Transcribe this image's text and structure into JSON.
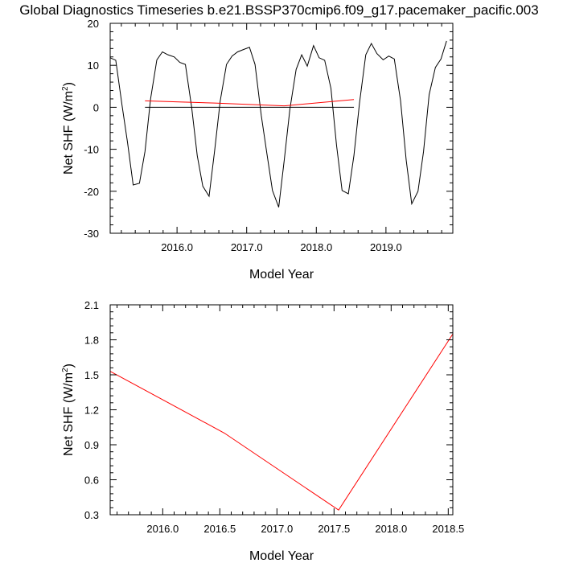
{
  "figure": {
    "title": "Global Diagnostics Timeseries b.e21.BSSP370cmip6.f09_g17.pacemaker_pacific.003"
  },
  "chart_data": [
    {
      "type": "line",
      "xlabel": "Model Year",
      "ylabel": "Net SHF (W/m",
      "ylabel_sup": "2",
      "ylabel_close": ")",
      "xlim": [
        2015.04,
        2019.96
      ],
      "ylim": [
        -30,
        20
      ],
      "x_ticks": [
        {
          "value": 2016.0,
          "label": "2016.0"
        },
        {
          "value": 2017.0,
          "label": "2017.0"
        },
        {
          "value": 2018.0,
          "label": "2018.0"
        },
        {
          "value": 2019.0,
          "label": "2019.0"
        }
      ],
      "x_minor": [
        2015.2,
        2015.4,
        2015.6,
        2015.8,
        2016.2,
        2016.4,
        2016.6,
        2016.8,
        2017.2,
        2017.4,
        2017.6,
        2017.8,
        2018.2,
        2018.4,
        2018.6,
        2018.8,
        2019.2,
        2019.4,
        2019.6,
        2019.8
      ],
      "y_ticks": [
        {
          "value": 20,
          "label": "20"
        },
        {
          "value": 10,
          "label": "10"
        },
        {
          "value": 0,
          "label": "0"
        },
        {
          "value": -10,
          "label": "-10"
        },
        {
          "value": -20,
          "label": "-20"
        },
        {
          "value": -30,
          "label": "-30"
        }
      ],
      "y_minor": [
        18,
        16,
        14,
        12,
        8,
        6,
        4,
        2,
        -2,
        -4,
        -6,
        -8,
        -12,
        -14,
        -16,
        -18,
        -22,
        -24,
        -26,
        -28
      ],
      "reference_line": {
        "y": 0,
        "x": [
          2015.54,
          2018.54
        ],
        "color": "#000000"
      },
      "series": [
        {
          "color": "#000000",
          "points": [
            [
              2015.04,
              11.8
            ],
            [
              2015.12,
              11.2
            ],
            [
              2015.21,
              0.5
            ],
            [
              2015.29,
              -8.5
            ],
            [
              2015.37,
              -18.5
            ],
            [
              2015.46,
              -18.1
            ],
            [
              2015.54,
              -10.5
            ],
            [
              2015.62,
              2.0
            ],
            [
              2015.71,
              11.3
            ],
            [
              2015.79,
              13.2
            ],
            [
              2015.87,
              12.5
            ],
            [
              2015.96,
              12.0
            ],
            [
              2016.04,
              10.7
            ],
            [
              2016.12,
              10.2
            ],
            [
              2016.21,
              0.0
            ],
            [
              2016.29,
              -11.5
            ],
            [
              2016.37,
              -18.8
            ],
            [
              2016.46,
              -21.2
            ],
            [
              2016.54,
              -10.3
            ],
            [
              2016.62,
              1.5
            ],
            [
              2016.71,
              10.2
            ],
            [
              2016.79,
              12.2
            ],
            [
              2016.87,
              13.2
            ],
            [
              2016.96,
              13.8
            ],
            [
              2017.04,
              14.3
            ],
            [
              2017.12,
              10.2
            ],
            [
              2017.21,
              -2.0
            ],
            [
              2017.29,
              -11.0
            ],
            [
              2017.37,
              -19.8
            ],
            [
              2017.46,
              -23.8
            ],
            [
              2017.54,
              -12.5
            ],
            [
              2017.62,
              -0.5
            ],
            [
              2017.71,
              9.0
            ],
            [
              2017.79,
              12.5
            ],
            [
              2017.87,
              9.8
            ],
            [
              2017.96,
              14.7
            ],
            [
              2018.04,
              11.8
            ],
            [
              2018.12,
              11.2
            ],
            [
              2018.21,
              4.5
            ],
            [
              2018.29,
              -9.0
            ],
            [
              2018.37,
              -19.8
            ],
            [
              2018.46,
              -20.6
            ],
            [
              2018.54,
              -11.5
            ],
            [
              2018.62,
              1.0
            ],
            [
              2018.71,
              12.5
            ],
            [
              2018.79,
              15.2
            ],
            [
              2018.87,
              12.8
            ],
            [
              2018.96,
              11.3
            ],
            [
              2019.04,
              12.2
            ],
            [
              2019.12,
              11.5
            ],
            [
              2019.21,
              1.5
            ],
            [
              2019.29,
              -12.5
            ],
            [
              2019.37,
              -23.0
            ],
            [
              2019.46,
              -20.0
            ],
            [
              2019.54,
              -10.5
            ],
            [
              2019.62,
              3.0
            ],
            [
              2019.71,
              9.5
            ],
            [
              2019.79,
              11.5
            ],
            [
              2019.87,
              15.8
            ]
          ]
        },
        {
          "color": "#ff0000",
          "points": [
            [
              2015.54,
              1.53
            ],
            [
              2016.54,
              1.0
            ],
            [
              2017.54,
              0.34
            ],
            [
              2018.54,
              1.85
            ]
          ]
        }
      ]
    },
    {
      "type": "line",
      "xlabel": "Model Year",
      "ylabel": "Net SHF (W/m",
      "ylabel_sup": "2",
      "ylabel_close": ")",
      "xlim": [
        2015.54,
        2018.54
      ],
      "ylim": [
        0.3,
        2.1
      ],
      "x_ticks": [
        {
          "value": 2016.0,
          "label": "2016.0"
        },
        {
          "value": 2016.5,
          "label": "2016.5"
        },
        {
          "value": 2017.0,
          "label": "2017.0"
        },
        {
          "value": 2017.5,
          "label": "2017.5"
        },
        {
          "value": 2018.0,
          "label": "2018.0"
        },
        {
          "value": 2018.5,
          "label": "2018.5"
        }
      ],
      "x_minor": [
        2015.6,
        2015.7,
        2015.8,
        2015.9,
        2016.1,
        2016.2,
        2016.3,
        2016.4,
        2016.6,
        2016.7,
        2016.8,
        2016.9,
        2017.1,
        2017.2,
        2017.3,
        2017.4,
        2017.6,
        2017.7,
        2017.8,
        2017.9,
        2018.1,
        2018.2,
        2018.3,
        2018.4
      ],
      "y_ticks": [
        {
          "value": 2.1,
          "label": "2.1"
        },
        {
          "value": 1.8,
          "label": "1.8"
        },
        {
          "value": 1.5,
          "label": "1.5"
        },
        {
          "value": 1.2,
          "label": "1.2"
        },
        {
          "value": 0.9,
          "label": "0.9"
        },
        {
          "value": 0.6,
          "label": "0.6"
        },
        {
          "value": 0.3,
          "label": "0.3"
        }
      ],
      "y_minor": [
        2.04,
        1.98,
        1.92,
        1.86,
        1.74,
        1.68,
        1.62,
        1.56,
        1.44,
        1.38,
        1.32,
        1.26,
        1.14,
        1.08,
        1.02,
        0.96,
        0.84,
        0.78,
        0.72,
        0.66,
        0.54,
        0.48,
        0.42,
        0.36
      ],
      "series": [
        {
          "color": "#ff0000",
          "points": [
            [
              2015.54,
              1.53
            ],
            [
              2016.54,
              1.0
            ],
            [
              2017.54,
              0.34
            ],
            [
              2018.54,
              1.85
            ]
          ]
        }
      ]
    }
  ]
}
